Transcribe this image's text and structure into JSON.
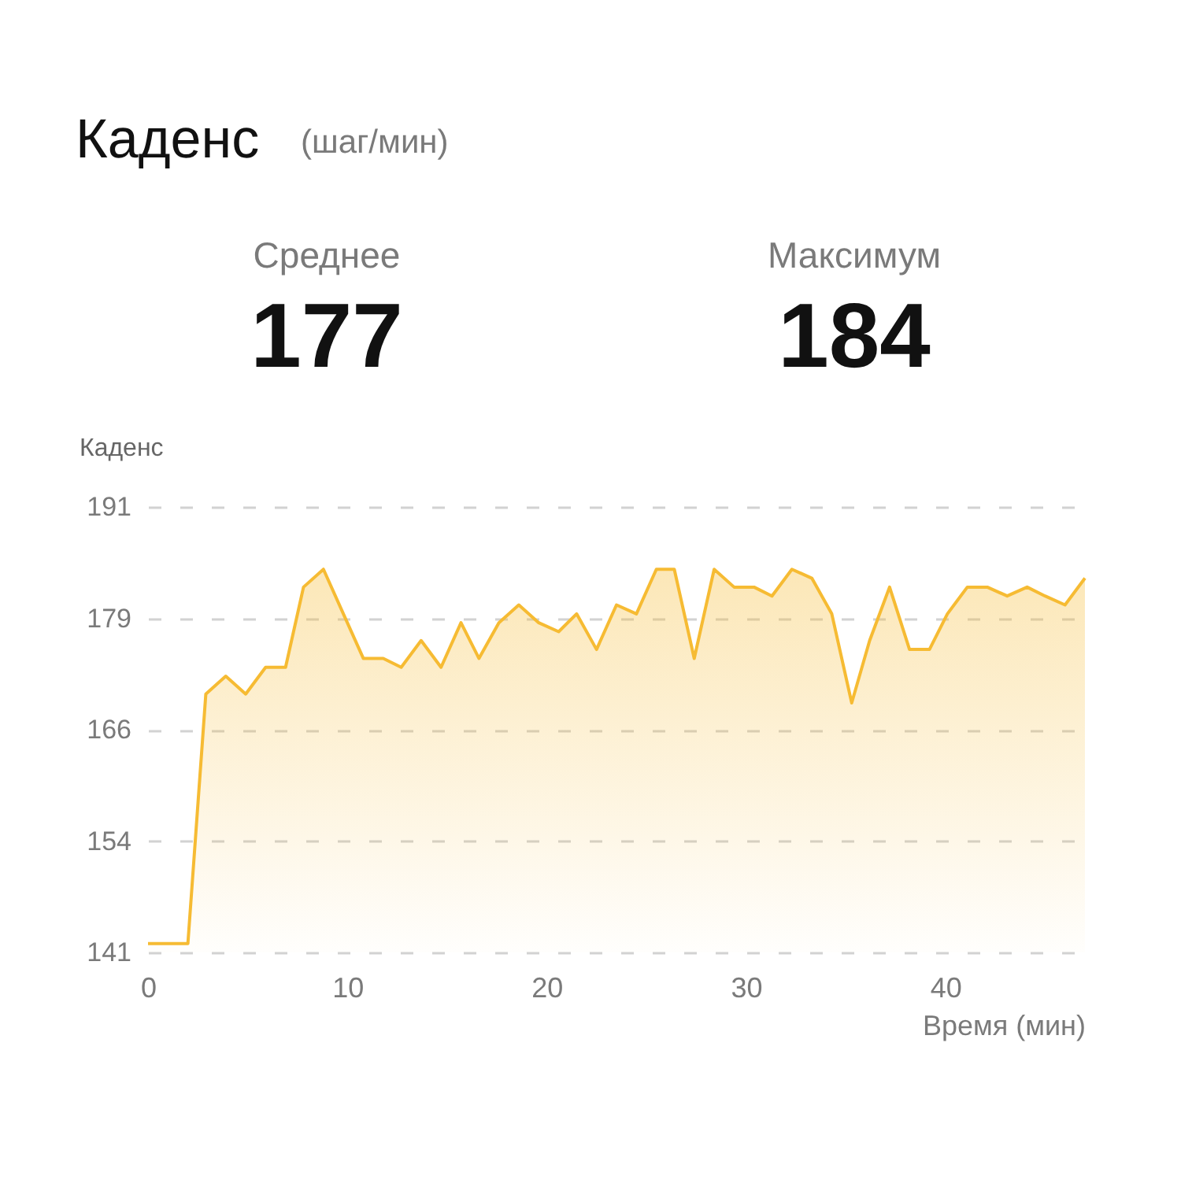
{
  "chart_data": {
    "type": "area",
    "title": "Каденс",
    "subtitle": "(шаг/мин)",
    "xlabel": "Время (мин)",
    "ylabel": "Каденс",
    "annotations": [
      "Среднее",
      "177",
      "Максимум",
      "184"
    ],
    "x": [
      0,
      1.0,
      2.0,
      2.9,
      3.9,
      4.9,
      5.9,
      6.9,
      7.8,
      8.8,
      9.8,
      10.8,
      11.8,
      12.7,
      13.7,
      14.7,
      15.7,
      16.6,
      17.6,
      18.6,
      19.6,
      20.6,
      21.5,
      22.5,
      23.5,
      24.5,
      25.5,
      26.4,
      27.4,
      28.4,
      29.4,
      30.4,
      31.3,
      32.3,
      33.3,
      34.3,
      35.3,
      36.2,
      37.2,
      38.2,
      39.2,
      40.1,
      41.1,
      42.1,
      43.1,
      44.1,
      45.0,
      46.0,
      47.0
    ],
    "series": [
      {
        "color": "#f6bb33",
        "values": [
          142,
          142,
          142,
          170,
          172,
          170,
          173,
          173,
          182,
          184,
          179,
          174,
          174,
          173,
          176,
          173,
          178,
          174,
          178,
          180,
          178,
          177,
          179,
          175,
          180,
          179,
          184,
          184,
          174,
          184,
          182,
          182,
          181,
          184,
          183,
          179,
          169,
          176,
          182,
          175,
          175,
          179,
          182,
          182,
          181,
          182,
          181,
          180,
          183
        ]
      }
    ],
    "xlim": [
      0,
      47
    ],
    "ylim": [
      141,
      191
    ],
    "xticks": [
      0,
      10,
      20,
      30,
      40
    ],
    "yticks": [
      141,
      {
        "value": 153.5,
        "label": "154"
      },
      166,
      {
        "value": 178.5,
        "label": "179"
      },
      191
    ],
    "grid": "y"
  }
}
